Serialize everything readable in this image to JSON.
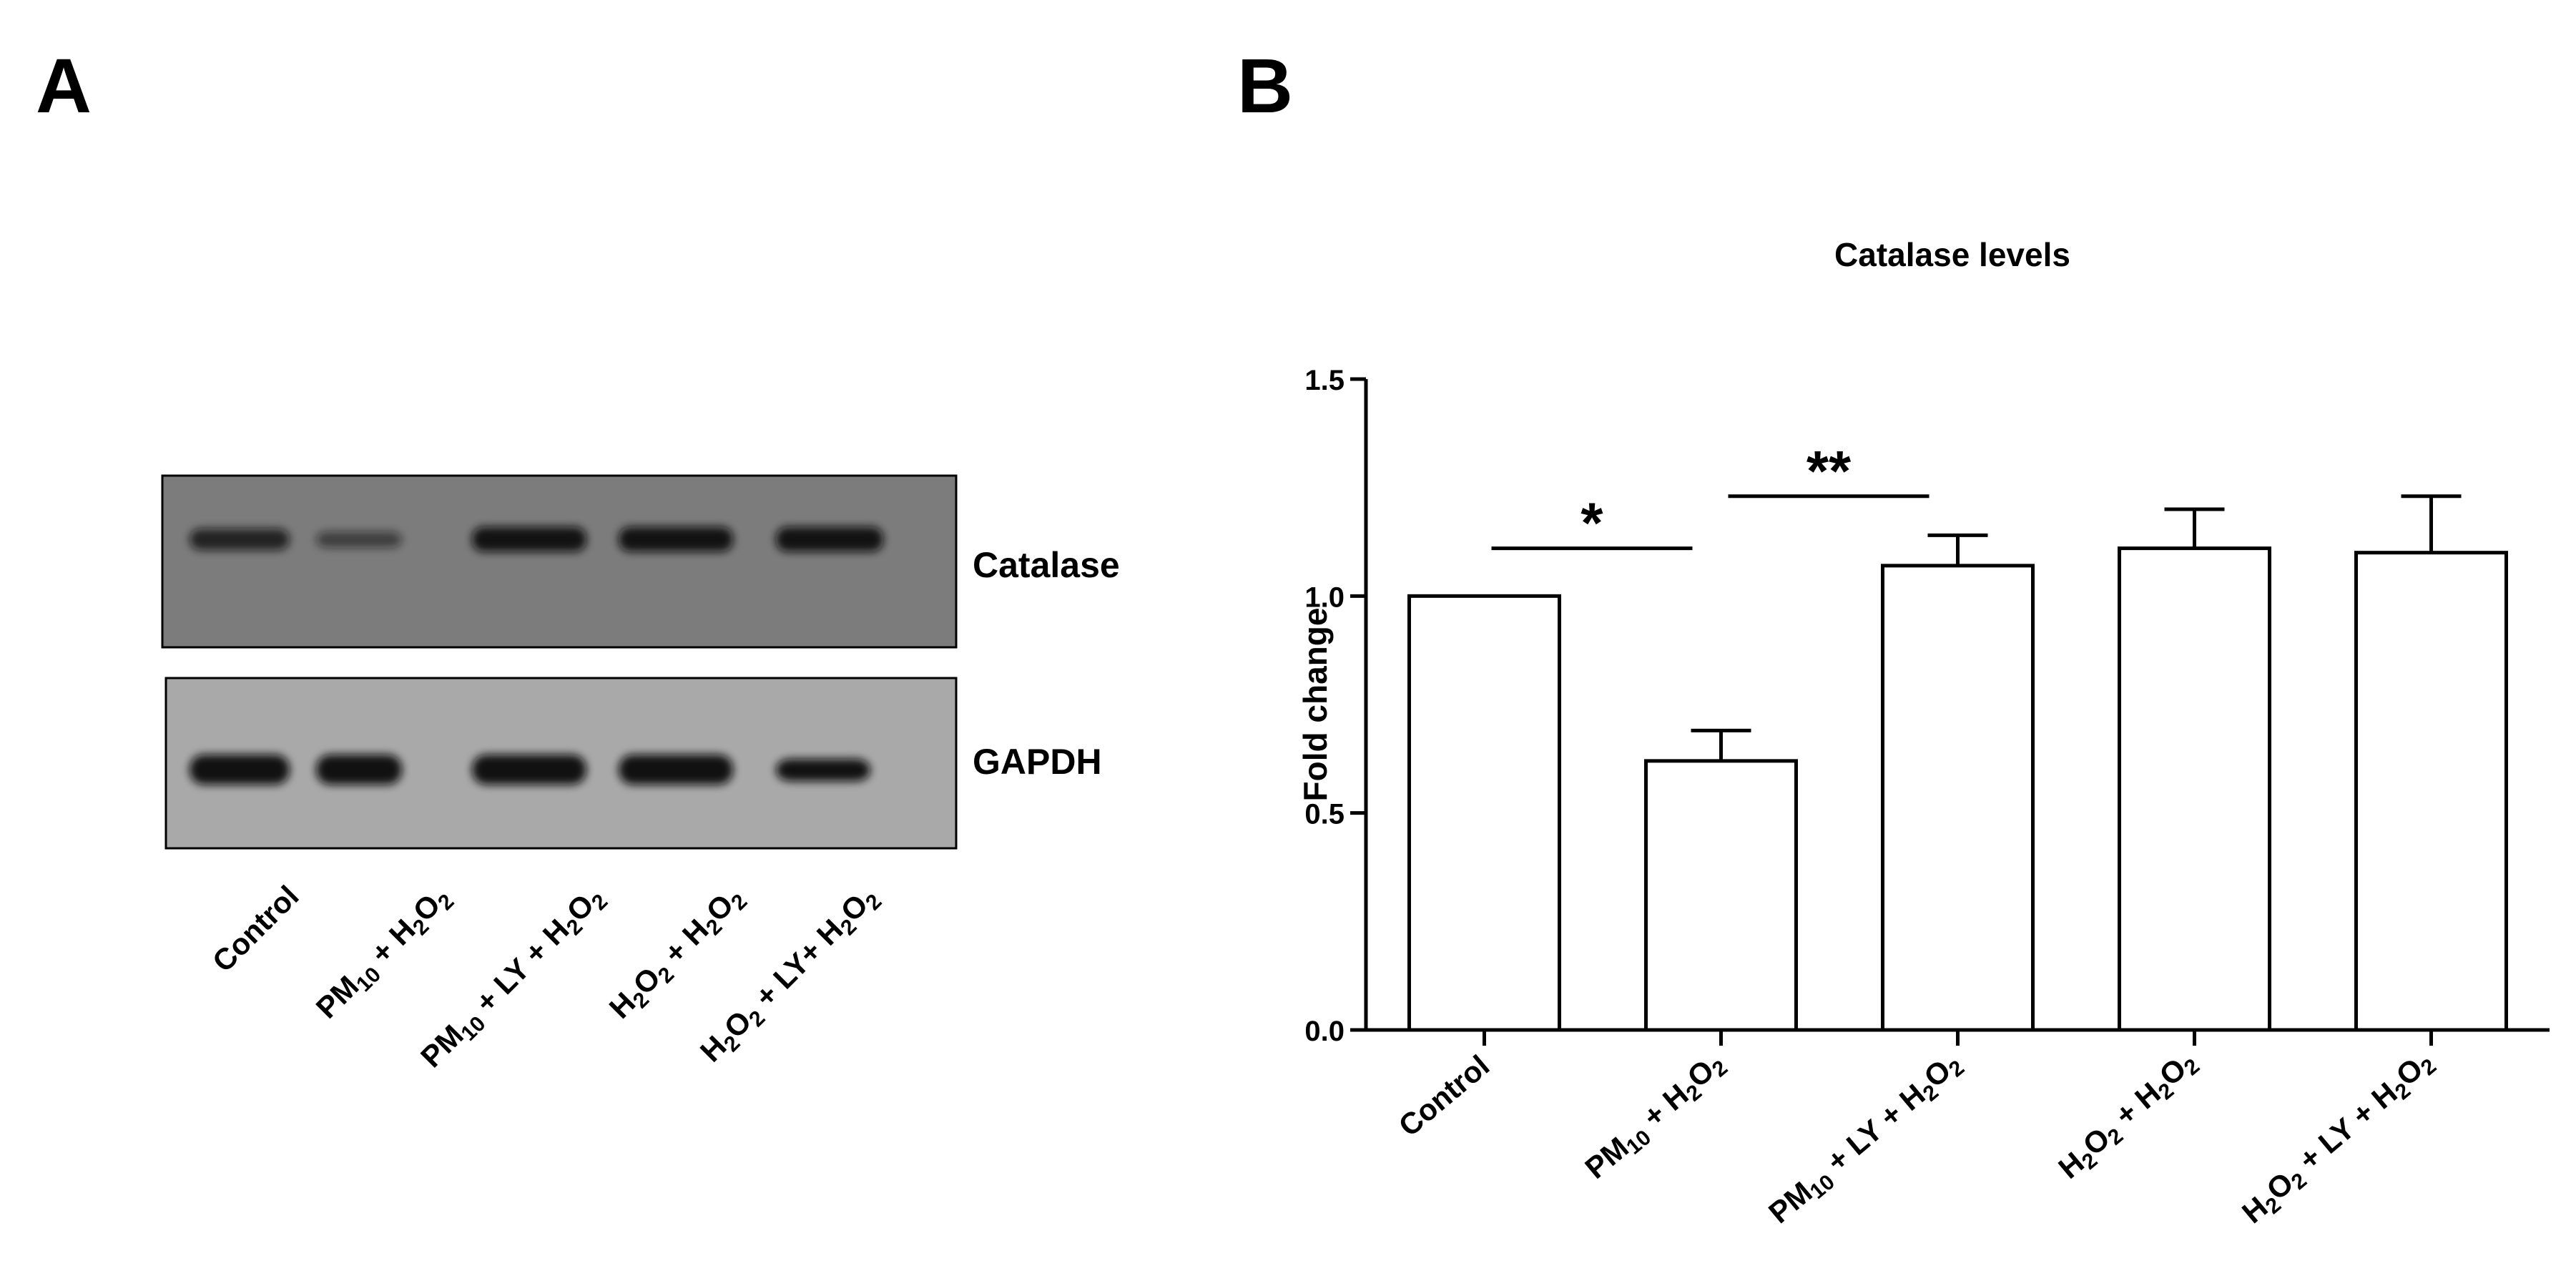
{
  "panels": {
    "a_letter": "A",
    "b_letter": "B"
  },
  "blot": {
    "top_label": "Catalase",
    "bottom_label": "GAPDH",
    "lanes": [
      {
        "main": "Control",
        "parts": [
          [
            "Control",
            false
          ]
        ]
      },
      {
        "main": "PM10 + H2O2",
        "parts": [
          [
            "PM",
            false
          ],
          [
            "10",
            true
          ],
          [
            " + H",
            false
          ],
          [
            "2",
            true
          ],
          [
            "O",
            false
          ],
          [
            "2",
            true
          ]
        ]
      },
      {
        "main": "PM10 + LY + H2O2",
        "parts": [
          [
            "PM",
            false
          ],
          [
            "10",
            true
          ],
          [
            " + LY + H",
            false
          ],
          [
            "2",
            true
          ],
          [
            "O",
            false
          ],
          [
            "2",
            true
          ]
        ]
      },
      {
        "main": "H2O2 + H2O2",
        "parts": [
          [
            "H",
            false
          ],
          [
            "2",
            true
          ],
          [
            "O",
            false
          ],
          [
            "2",
            true
          ],
          [
            " + H",
            false
          ],
          [
            "2",
            true
          ],
          [
            "O",
            false
          ],
          [
            "2",
            true
          ]
        ]
      },
      {
        "main": "H2O2 + LY+ H2O2",
        "parts": [
          [
            "H",
            false
          ],
          [
            "2",
            true
          ],
          [
            "O",
            false
          ],
          [
            "2",
            true
          ],
          [
            " + LY+ H",
            false
          ],
          [
            "2",
            true
          ],
          [
            "O",
            false
          ],
          [
            "2",
            true
          ]
        ]
      }
    ],
    "catalase_band_intensity": [
      0.8,
      0.55,
      0.95,
      0.95,
      0.95
    ],
    "gapdh_band_intensity": [
      1.0,
      1.0,
      1.0,
      1.0,
      0.7
    ]
  },
  "chart_data": {
    "type": "bar",
    "title": "Catalase levels",
    "xlabel": "",
    "ylabel": "Fold change",
    "ylim": [
      0,
      1.5
    ],
    "yticks": [
      "0.0",
      "0.5",
      "1.0",
      "1.5"
    ],
    "ytick_values": [
      0,
      0.5,
      1.0,
      1.5
    ],
    "categories": [
      "Control",
      "PM10 + H2O2",
      "PM10 + LY + H2O2",
      "H2O2 + H2O2",
      "H2O2 + LY + H2O2"
    ],
    "category_parts": [
      [
        [
          "Control",
          false
        ]
      ],
      [
        [
          "PM",
          false
        ],
        [
          "10",
          true
        ],
        [
          " + H",
          false
        ],
        [
          "2",
          true
        ],
        [
          "O",
          false
        ],
        [
          "2",
          true
        ]
      ],
      [
        [
          "PM",
          false
        ],
        [
          "10",
          true
        ],
        [
          " + LY + H",
          false
        ],
        [
          "2",
          true
        ],
        [
          "O",
          false
        ],
        [
          "2",
          true
        ]
      ],
      [
        [
          "H",
          false
        ],
        [
          "2",
          true
        ],
        [
          "O",
          false
        ],
        [
          "2",
          true
        ],
        [
          " + H",
          false
        ],
        [
          "2",
          true
        ],
        [
          "O",
          false
        ],
        [
          "2",
          true
        ]
      ],
      [
        [
          "H",
          false
        ],
        [
          "2",
          true
        ],
        [
          "O",
          false
        ],
        [
          "2",
          true
        ],
        [
          " + LY + H",
          false
        ],
        [
          "2",
          true
        ],
        [
          "O",
          false
        ],
        [
          "2",
          true
        ]
      ]
    ],
    "values": [
      1.0,
      0.62,
      1.07,
      1.11,
      1.1
    ],
    "errors": [
      0.0,
      0.07,
      0.07,
      0.09,
      0.13
    ],
    "significance": [
      {
        "from": 0,
        "to": 1,
        "label": "*",
        "y": 1.11
      },
      {
        "from": 1,
        "to": 2,
        "label": "**",
        "y": 1.23
      }
    ],
    "bar_fill": "#ffffff",
    "bar_stroke": "#000000"
  }
}
